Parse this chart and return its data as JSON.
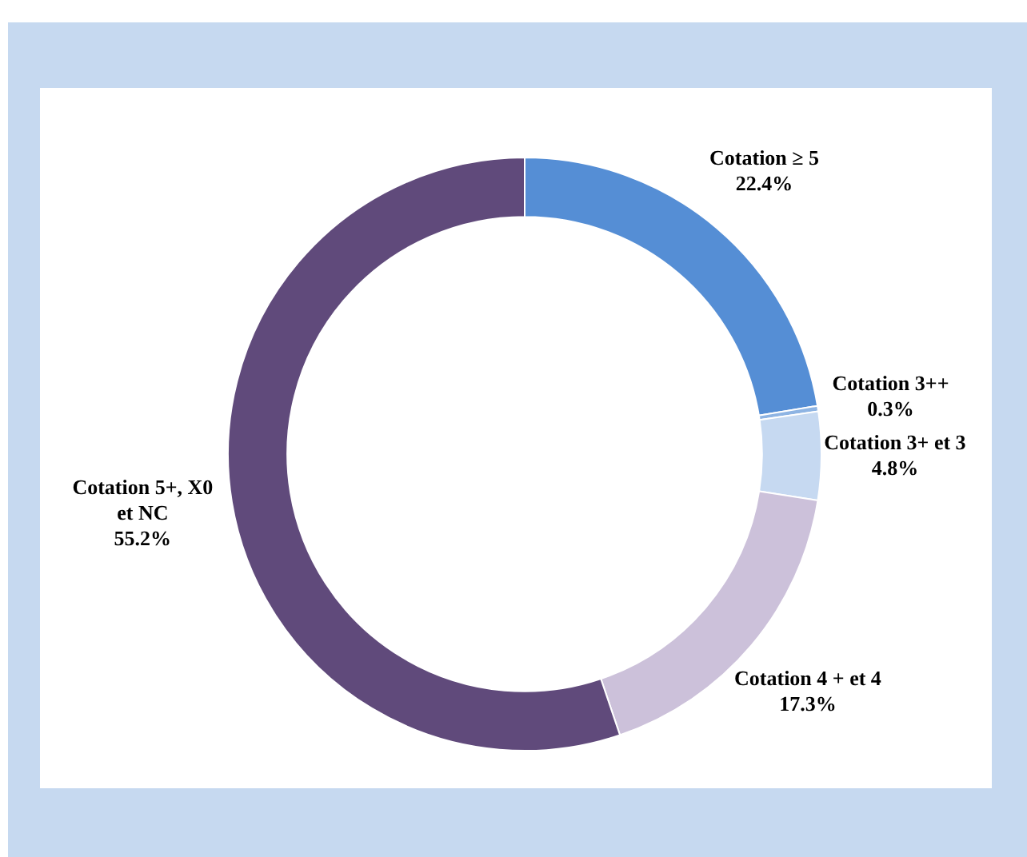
{
  "chart_data": {
    "type": "donut",
    "categories": [
      "Cotation ≥ 5",
      "Cotation 3++",
      "Cotation 3+ et 3",
      "Cotation 4 + et 4",
      "Cotation 5+, X0 et NC"
    ],
    "values": [
      22.4,
      0.3,
      4.8,
      17.3,
      55.2
    ],
    "value_labels": [
      "22.4%",
      "0.3%",
      "4.8%",
      "17.3%",
      "55.2%"
    ],
    "colors": [
      "#558ed5",
      "#8eb4e3",
      "#c6d9f1",
      "#ccc1da",
      "#604a7b"
    ],
    "legend": false
  }
}
